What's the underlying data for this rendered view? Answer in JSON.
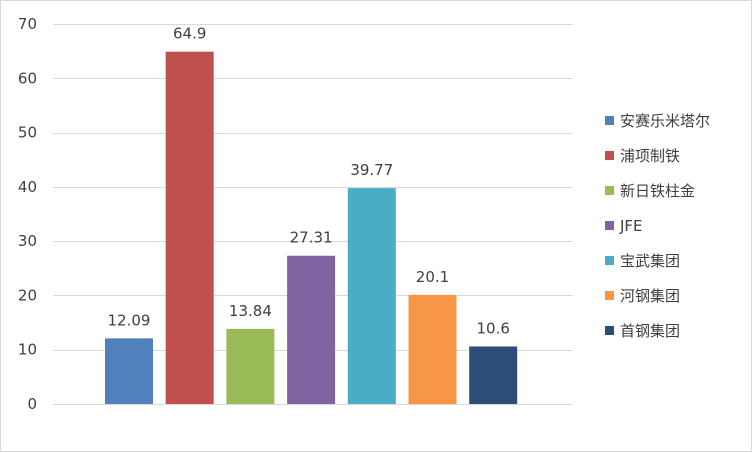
{
  "chart_data": {
    "type": "bar",
    "categories": [
      "安赛乐米塔尔",
      "浦项制铁",
      "新日铁柱金",
      "JFE",
      "宝武集团",
      "河钢集团",
      "首钢集团"
    ],
    "values": [
      12.09,
      64.9,
      13.84,
      27.31,
      39.77,
      20.1,
      10.6
    ],
    "value_labels": [
      "12.09",
      "64.9",
      "13.84",
      "27.31",
      "39.77",
      "20.1",
      "10.6"
    ],
    "colors": [
      "#4f81bd",
      "#c0504d",
      "#9bbb59",
      "#8064a2",
      "#4bacc6",
      "#f79646",
      "#2c4d75"
    ],
    "title": "",
    "xlabel": "",
    "ylabel": "",
    "ylim": [
      0,
      70
    ],
    "yticks": [
      0,
      10,
      20,
      30,
      40,
      50,
      60,
      70
    ],
    "grid": true,
    "gridline_color": "#d9d9d9",
    "legend_position": "right"
  }
}
